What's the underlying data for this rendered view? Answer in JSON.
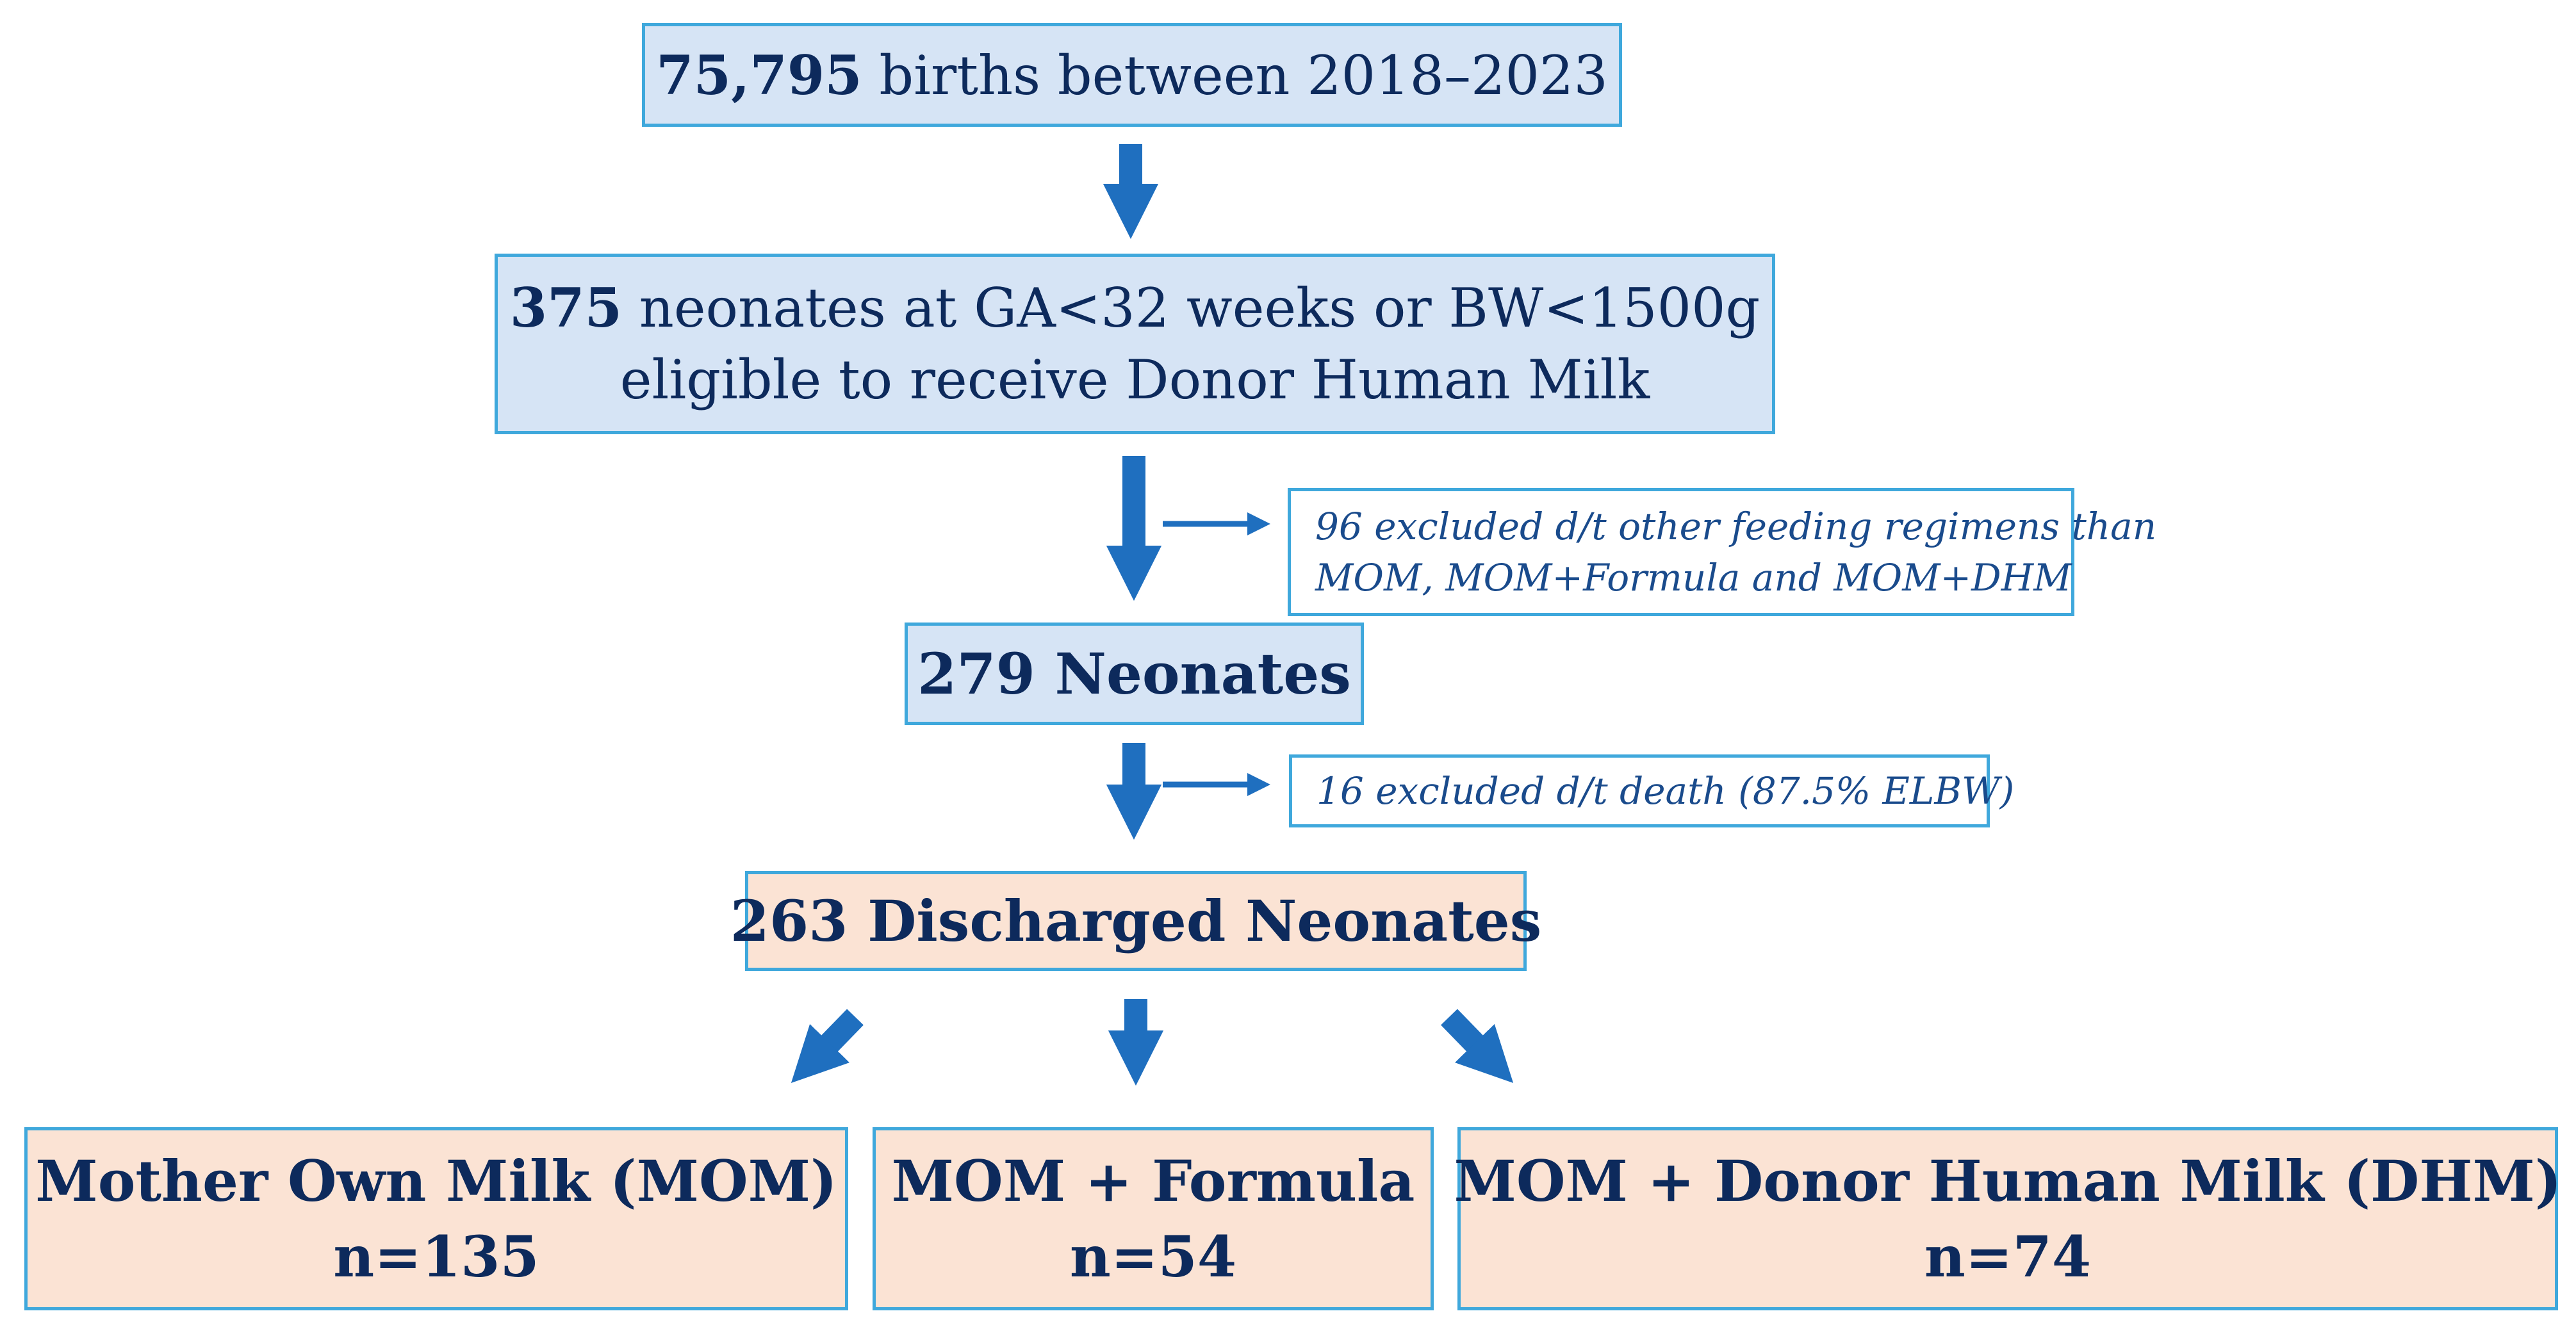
{
  "flow": {
    "births": {
      "count": "75,795",
      "text": " births between 2018–2023"
    },
    "eligible": {
      "count": "375",
      "line1_rest": " neonates at GA<32 weeks or BW<1500g",
      "line2": "eligible to receive Donor Human Milk"
    },
    "exclusion_feeding": {
      "line1": "96 excluded d/t other feeding regimens than",
      "line2": "MOM, MOM+Formula and MOM+DHM"
    },
    "neonates_279": "279 Neonates",
    "exclusion_death": "16 excluded d/t death (87.5% ELBW)",
    "discharged": "263 Discharged Neonates",
    "groups": [
      {
        "label": "Mother Own Milk (MOM)",
        "n": "n=135"
      },
      {
        "label": "MOM + Formula",
        "n": "n=54"
      },
      {
        "label": "MOM + Donor Human Milk (DHM)",
        "n": "n=74"
      }
    ]
  },
  "colors": {
    "box_blue_fill": "#d6e4f5",
    "box_peach_fill": "#fbe3d4",
    "border": "#3fa8dc",
    "arrow": "#1f6fbf",
    "text": "#0d2a5c"
  }
}
